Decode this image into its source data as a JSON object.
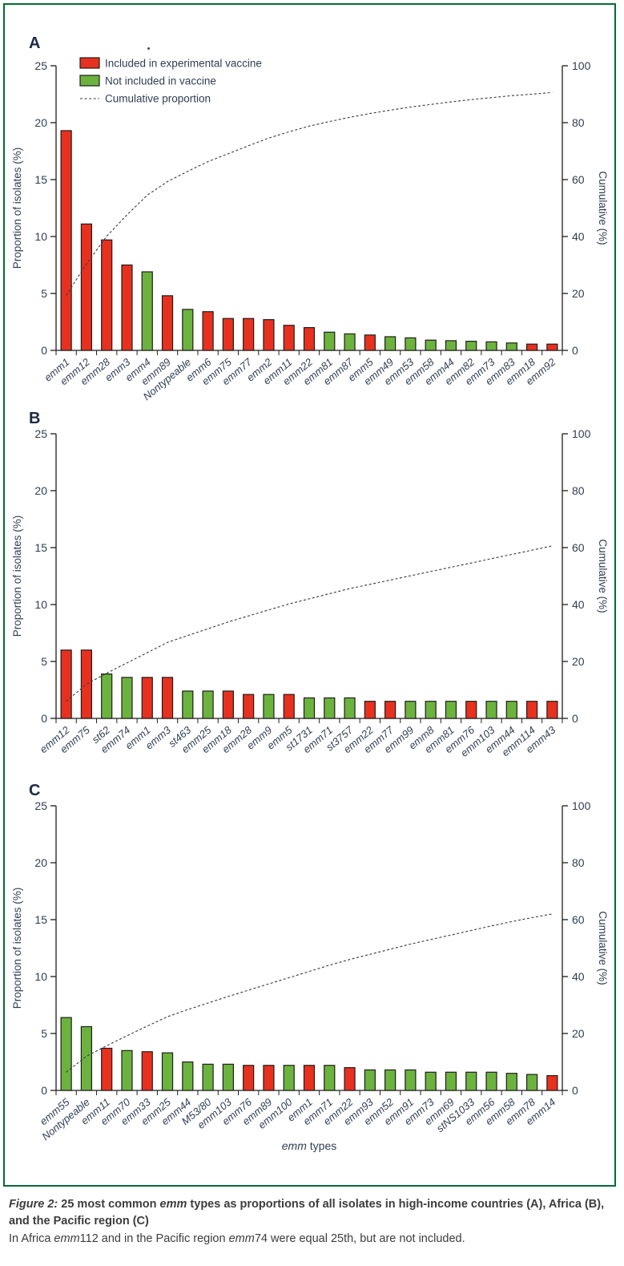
{
  "figure": {
    "caption": {
      "figure_label": "Figure 2:",
      "title_pre": " 25 most common ",
      "title_emm": "emm",
      "title_post_line1": " types as proportions of all isolates in high-income countries (A), Africa (B),",
      "title_post_line2": "and  the Pacific region (C)",
      "note_pre": "In Africa ",
      "note_emm1": "emm",
      "note_mid": "112 and in the Pacific region ",
      "note_emm2": "emm",
      "note_end": "74 were equal 25th, but are not included."
    },
    "x_axis_title_emm": "emm",
    "x_axis_title_rest": " types"
  },
  "legend": {
    "included_label": "Included in experimental vaccine",
    "not_included_label": "Not included in vaccine",
    "cumulative_label": "Cumulative proportion"
  },
  "colors": {
    "included": "#e8301f",
    "not_included": "#6cb33e",
    "bar_outline": "#1d1d1b",
    "dashed_line": "#3a3a3a",
    "frame": "#046a38",
    "chart_text": "#2f3e53",
    "panel_letter": "#1c2b44"
  },
  "chart_data": [
    {
      "type": "bar",
      "panel": "A",
      "ylabel": "Proportion of isolates (%)",
      "y2label": "Cumulative (%)",
      "ylim": [
        0,
        25
      ],
      "y2lim": [
        0,
        100
      ],
      "yticks": [
        0,
        5,
        10,
        15,
        20,
        25
      ],
      "y2ticks": [
        0,
        20,
        40,
        60,
        80,
        100
      ],
      "categories": [
        "emm1",
        "emm12",
        "emm28",
        "emm3",
        "emm4",
        "emm89",
        "Nontypeable",
        "emm6",
        "emm75",
        "emm77",
        "emm2",
        "emm11",
        "emm22",
        "emm81",
        "emm87",
        "emm5",
        "emm49",
        "emm53",
        "emm58",
        "emm44",
        "emm82",
        "emm73",
        "emm83",
        "emm18",
        "emm92"
      ],
      "values": [
        19.3,
        11.1,
        9.7,
        7.5,
        6.9,
        4.8,
        3.6,
        3.4,
        2.8,
        2.8,
        2.7,
        2.2,
        2.0,
        1.6,
        1.45,
        1.35,
        1.2,
        1.1,
        0.9,
        0.85,
        0.8,
        0.75,
        0.65,
        0.55,
        0.55
      ],
      "included_in_vaccine": [
        true,
        true,
        true,
        true,
        false,
        true,
        false,
        true,
        true,
        true,
        true,
        true,
        true,
        false,
        false,
        true,
        false,
        false,
        false,
        false,
        false,
        false,
        false,
        true,
        true
      ],
      "cumulative": [
        19.3,
        30.4,
        40.1,
        47.6,
        54.5,
        59.3,
        62.9,
        66.3,
        69.1,
        71.9,
        74.6,
        76.8,
        78.8,
        80.4,
        81.9,
        83.2,
        84.4,
        85.5,
        86.4,
        87.3,
        88.1,
        88.8,
        89.5,
        90.0,
        90.6
      ]
    },
    {
      "type": "bar",
      "panel": "B",
      "ylabel": "Proportion of isolates (%)",
      "y2label": "Cumulative (%)",
      "ylim": [
        0,
        25
      ],
      "y2lim": [
        0,
        100
      ],
      "yticks": [
        0,
        5,
        10,
        15,
        20,
        25
      ],
      "y2ticks": [
        0,
        20,
        40,
        60,
        80,
        100
      ],
      "categories": [
        "emm12",
        "emm75",
        "st62",
        "emm74",
        "emm1",
        "emm3",
        "st463",
        "emm25",
        "emm18",
        "emm28",
        "emm9",
        "emm5",
        "st1731",
        "emm71",
        "st3757",
        "emm22",
        "emm77",
        "emm99",
        "emm8",
        "emm81",
        "emm76",
        "emm103",
        "emm44",
        "emm114",
        "emm43"
      ],
      "values": [
        6.0,
        6.0,
        3.9,
        3.6,
        3.6,
        3.6,
        2.4,
        2.4,
        2.4,
        2.1,
        2.1,
        2.1,
        1.8,
        1.8,
        1.8,
        1.5,
        1.5,
        1.5,
        1.5,
        1.5,
        1.5,
        1.5,
        1.5,
        1.5,
        1.5
      ],
      "included_in_vaccine": [
        true,
        true,
        false,
        false,
        true,
        true,
        false,
        false,
        true,
        true,
        false,
        true,
        false,
        false,
        false,
        true,
        true,
        false,
        false,
        false,
        true,
        false,
        false,
        true,
        true
      ],
      "cumulative": [
        6.0,
        12.0,
        15.9,
        19.5,
        23.1,
        26.7,
        29.1,
        31.5,
        33.9,
        36.0,
        38.1,
        40.2,
        42.0,
        43.8,
        45.6,
        47.1,
        48.6,
        50.1,
        51.6,
        53.1,
        54.6,
        56.1,
        57.6,
        59.1,
        60.6
      ]
    },
    {
      "type": "bar",
      "panel": "C",
      "ylabel": "Proportion of isolates (%)",
      "y2label": "Cumulative (%)",
      "ylim": [
        0,
        25
      ],
      "y2lim": [
        0,
        100
      ],
      "yticks": [
        0,
        5,
        10,
        15,
        20,
        25
      ],
      "y2ticks": [
        0,
        20,
        40,
        60,
        80,
        100
      ],
      "categories": [
        "emm55",
        "Nontypeable",
        "emm11",
        "emm70",
        "emm33",
        "emm25",
        "emm44",
        "M53/80",
        "emm103",
        "emm76",
        "emm89",
        "emm100",
        "emm1",
        "emm71",
        "emm22",
        "emm93",
        "emm52",
        "emm91",
        "emm73",
        "emm69",
        "stNS1033",
        "emm56",
        "emm58",
        "emm78",
        "emm14"
      ],
      "values": [
        6.4,
        5.6,
        3.7,
        3.5,
        3.4,
        3.3,
        2.5,
        2.3,
        2.3,
        2.2,
        2.2,
        2.2,
        2.2,
        2.2,
        2.0,
        1.8,
        1.8,
        1.8,
        1.6,
        1.6,
        1.6,
        1.6,
        1.5,
        1.4,
        1.3
      ],
      "included_in_vaccine": [
        false,
        false,
        true,
        false,
        true,
        false,
        false,
        false,
        false,
        true,
        true,
        false,
        true,
        false,
        true,
        false,
        false,
        false,
        false,
        false,
        false,
        false,
        false,
        false,
        true
      ],
      "cumulative": [
        6.4,
        12.0,
        15.7,
        19.2,
        22.6,
        25.9,
        28.4,
        30.7,
        33.0,
        35.2,
        37.4,
        39.6,
        41.8,
        44.0,
        46.0,
        47.8,
        49.6,
        51.4,
        53.0,
        54.6,
        56.2,
        57.8,
        59.3,
        60.7,
        62.0
      ]
    }
  ]
}
